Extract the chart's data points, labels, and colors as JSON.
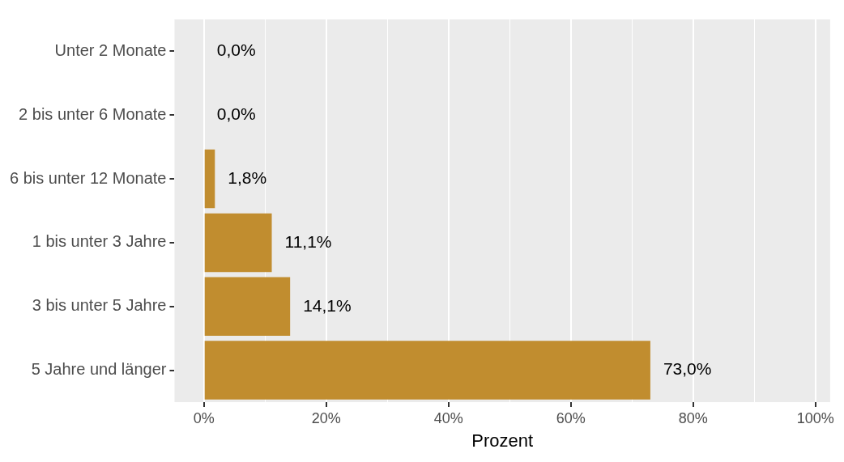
{
  "chart_data": {
    "type": "bar",
    "orientation": "horizontal",
    "xlabel": "Prozent",
    "categories": [
      "Unter 2 Monate",
      "2 bis unter 6 Monate",
      "6 bis unter 12 Monate",
      "1 bis unter 3 Jahre",
      "3 bis unter 5 Jahre",
      "5 Jahre und länger"
    ],
    "values": [
      0.0,
      0.0,
      1.8,
      11.1,
      14.1,
      73.0
    ],
    "value_labels": [
      "0,0%",
      "0,0%",
      "1,8%",
      "11,1%",
      "14,1%",
      "73,0%"
    ],
    "color": "#c18d2f",
    "xlim": [
      -4.8,
      102.4
    ],
    "xticks": [
      {
        "value": 0,
        "label": "0%"
      },
      {
        "value": 10,
        "label": null
      },
      {
        "value": 20,
        "label": "20%"
      },
      {
        "value": 30,
        "label": null
      },
      {
        "value": 40,
        "label": "40%"
      },
      {
        "value": 50,
        "label": null
      },
      {
        "value": 60,
        "label": "60%"
      },
      {
        "value": 70,
        "label": null
      },
      {
        "value": 80,
        "label": "80%"
      },
      {
        "value": 90,
        "label": null
      },
      {
        "value": 100,
        "label": "100%"
      }
    ],
    "grid": "x",
    "legend": false
  }
}
